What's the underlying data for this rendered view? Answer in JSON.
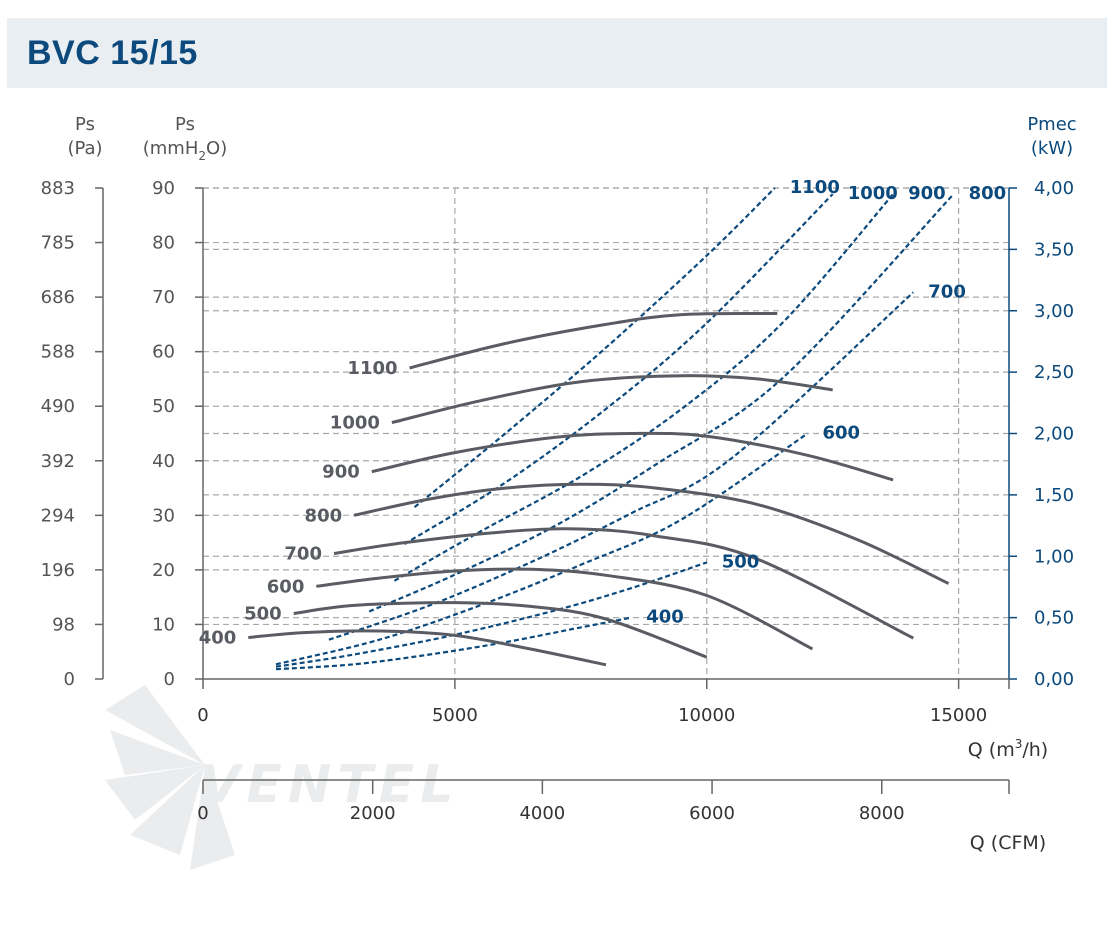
{
  "header": {
    "title": "BVC 15/15"
  },
  "watermark": "VENTEL",
  "chart_data": {
    "type": "line",
    "title": "BVC 15/15",
    "xlabel": "Q (m3/h)",
    "xlabel_secondary": "Q (CFM)",
    "ylabel_pa": "Ps (Pa)",
    "ylabel_mm": "Ps (mmH2O)",
    "ylabel_right": "Pmec (kW)",
    "ylim_mm": [
      0,
      90
    ],
    "ylim_kw": [
      0,
      4.0
    ],
    "xlim": [
      0,
      16000
    ],
    "xlim_cfm": [
      0,
      9500
    ],
    "x_ticks": [
      "0",
      "5000",
      "10000",
      "15000"
    ],
    "x_ticks_cfm": [
      "0",
      "2000",
      "4000",
      "6000",
      "8000"
    ],
    "y_ticks_mm": [
      "0",
      "10",
      "20",
      "30",
      "40",
      "50",
      "60",
      "70",
      "80",
      "90"
    ],
    "y_ticks_pa": [
      "0",
      "98",
      "196",
      "294",
      "392",
      "490",
      "588",
      "686",
      "785",
      "883"
    ],
    "y_ticks_kw": [
      "0,00",
      "0,50",
      "1,00",
      "1,50",
      "2,00",
      "2,50",
      "3,00",
      "3,50",
      "4,00"
    ],
    "grid": "dashed",
    "pressure_series": [
      {
        "name": "400",
        "x": [
          900,
          2000,
          3500,
          5000,
          6500,
          8000
        ],
        "y": [
          7.6,
          8.5,
          8.8,
          8,
          5.5,
          2.6
        ]
      },
      {
        "name": "500",
        "x": [
          1800,
          3000,
          5000,
          6500,
          8000,
          10000
        ],
        "y": [
          12,
          13.5,
          14,
          13.3,
          11,
          4
        ]
      },
      {
        "name": "600",
        "x": [
          2250,
          3500,
          5000,
          6500,
          8000,
          10000,
          12100
        ],
        "y": [
          17,
          18.5,
          19.8,
          20.1,
          19,
          15.3,
          5.5
        ]
      },
      {
        "name": "700",
        "x": [
          2600,
          4000,
          6000,
          7500,
          9000,
          11000,
          14100
        ],
        "y": [
          23,
          25,
          27,
          27.5,
          26.2,
          22,
          7.5
        ]
      },
      {
        "name": "800",
        "x": [
          3000,
          4500,
          6000,
          7500,
          9000,
          11000,
          13000,
          14800
        ],
        "y": [
          30,
          33,
          35,
          35.7,
          35,
          32,
          25.5,
          17.5
        ]
      },
      {
        "name": "900",
        "x": [
          3350,
          5000,
          7000,
          8500,
          10000,
          12000,
          13700
        ],
        "y": [
          38,
          41.5,
          44.3,
          45,
          44.5,
          41,
          36.5
        ]
      },
      {
        "name": "1000",
        "x": [
          3750,
          5500,
          7500,
          9500,
          11000,
          12500
        ],
        "y": [
          47,
          51,
          54.5,
          55.6,
          55,
          53
        ]
      },
      {
        "name": "1100",
        "x": [
          4100,
          6000,
          8000,
          9500,
          11400
        ],
        "y": [
          57,
          61.5,
          65,
          66.8,
          67
        ]
      }
    ],
    "power_series": [
      {
        "name": "400",
        "x": [
          1450,
          3000,
          4500,
          6000,
          7500,
          8500
        ],
        "y": [
          0.08,
          0.12,
          0.2,
          0.3,
          0.42,
          0.5
        ]
      },
      {
        "name": "500",
        "x": [
          1450,
          3000,
          5000,
          7000,
          8500,
          10000
        ],
        "y": [
          0.1,
          0.2,
          0.36,
          0.56,
          0.74,
          0.95
        ]
      },
      {
        "name": "600",
        "x": [
          1450,
          3500,
          5500,
          7500,
          9500,
          12000
        ],
        "y": [
          0.12,
          0.32,
          0.6,
          0.93,
          1.3,
          2.0
        ]
      },
      {
        "name": "700",
        "x": [
          2500,
          4500,
          6500,
          8500,
          10500,
          14100
        ],
        "y": [
          0.32,
          0.6,
          0.95,
          1.35,
          1.8,
          3.15
        ]
      },
      {
        "name": "800",
        "x": [
          3300,
          5000,
          7000,
          9000,
          11500,
          14900
        ],
        "y": [
          0.55,
          0.85,
          1.25,
          1.75,
          2.45,
          3.95
        ]
      },
      {
        "name": "900",
        "x": [
          3800,
          5500,
          7500,
          9500,
          11500,
          13700
        ],
        "y": [
          0.8,
          1.2,
          1.65,
          2.2,
          2.9,
          3.95
        ]
      },
      {
        "name": "1000",
        "x": [
          4000,
          6000,
          8000,
          10000,
          12500
        ],
        "y": [
          1.1,
          1.6,
          2.2,
          2.9,
          3.95
        ]
      },
      {
        "name": "1100",
        "x": [
          4200,
          6000,
          8000,
          10000,
          11350
        ],
        "y": [
          1.4,
          2.0,
          2.7,
          3.45,
          4.0
        ]
      }
    ]
  },
  "colors": {
    "title": "#0c4a7d",
    "pressure_curve": "#5a5c63",
    "power_curve": "#0c4a7d",
    "axis": "#666666",
    "right_axis": "#0c4a7d",
    "grid": "#a9a9a9",
    "header_bg": "#e9eef3"
  }
}
